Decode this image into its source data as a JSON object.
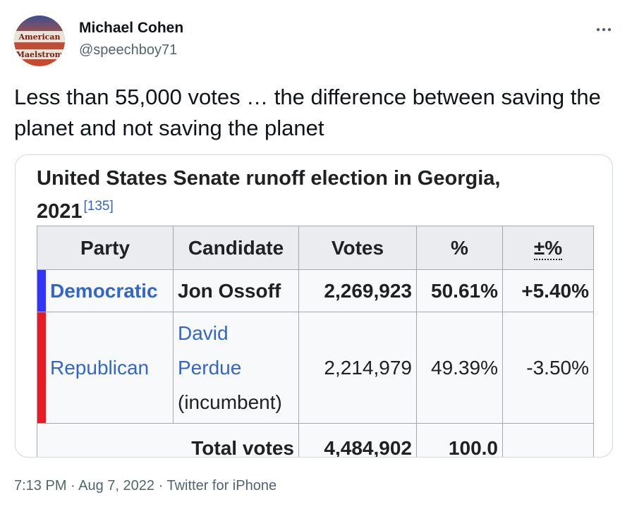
{
  "author": {
    "display_name": "Michael Cohen",
    "handle": "@speechboy71",
    "avatar_text_top": "American",
    "avatar_text_bottom": "Maelstrom"
  },
  "more_menu": {
    "label": "···"
  },
  "tweet": {
    "text": "Less than 55,000 votes … the difference between saving the planet and not saving the planet"
  },
  "media": {
    "caption": "United States Senate runoff election in Georgia, 2021",
    "caption_ref": "[135]",
    "headers": [
      "Party",
      "Candidate",
      "Votes",
      "%",
      "±%"
    ],
    "rows": [
      {
        "party": "Democratic",
        "party_color": "#3333ff",
        "candidate": "Jon Ossoff",
        "votes": "2,269,923",
        "percent": "50.61%",
        "change": "+5.40%"
      },
      {
        "party": "Republican",
        "party_color": "#e81b23",
        "candidate": "David Perdue",
        "candidate_note": "(incumbent)",
        "votes": "2,214,979",
        "percent": "49.39%",
        "change": "-3.50%"
      }
    ],
    "total": {
      "label": "Total votes",
      "votes": "4,484,902",
      "percent": "100.0"
    }
  },
  "footer": {
    "time": "7:13 PM",
    "date": "Aug 7, 2022",
    "source": "Twitter for iPhone",
    "separator": " · "
  }
}
